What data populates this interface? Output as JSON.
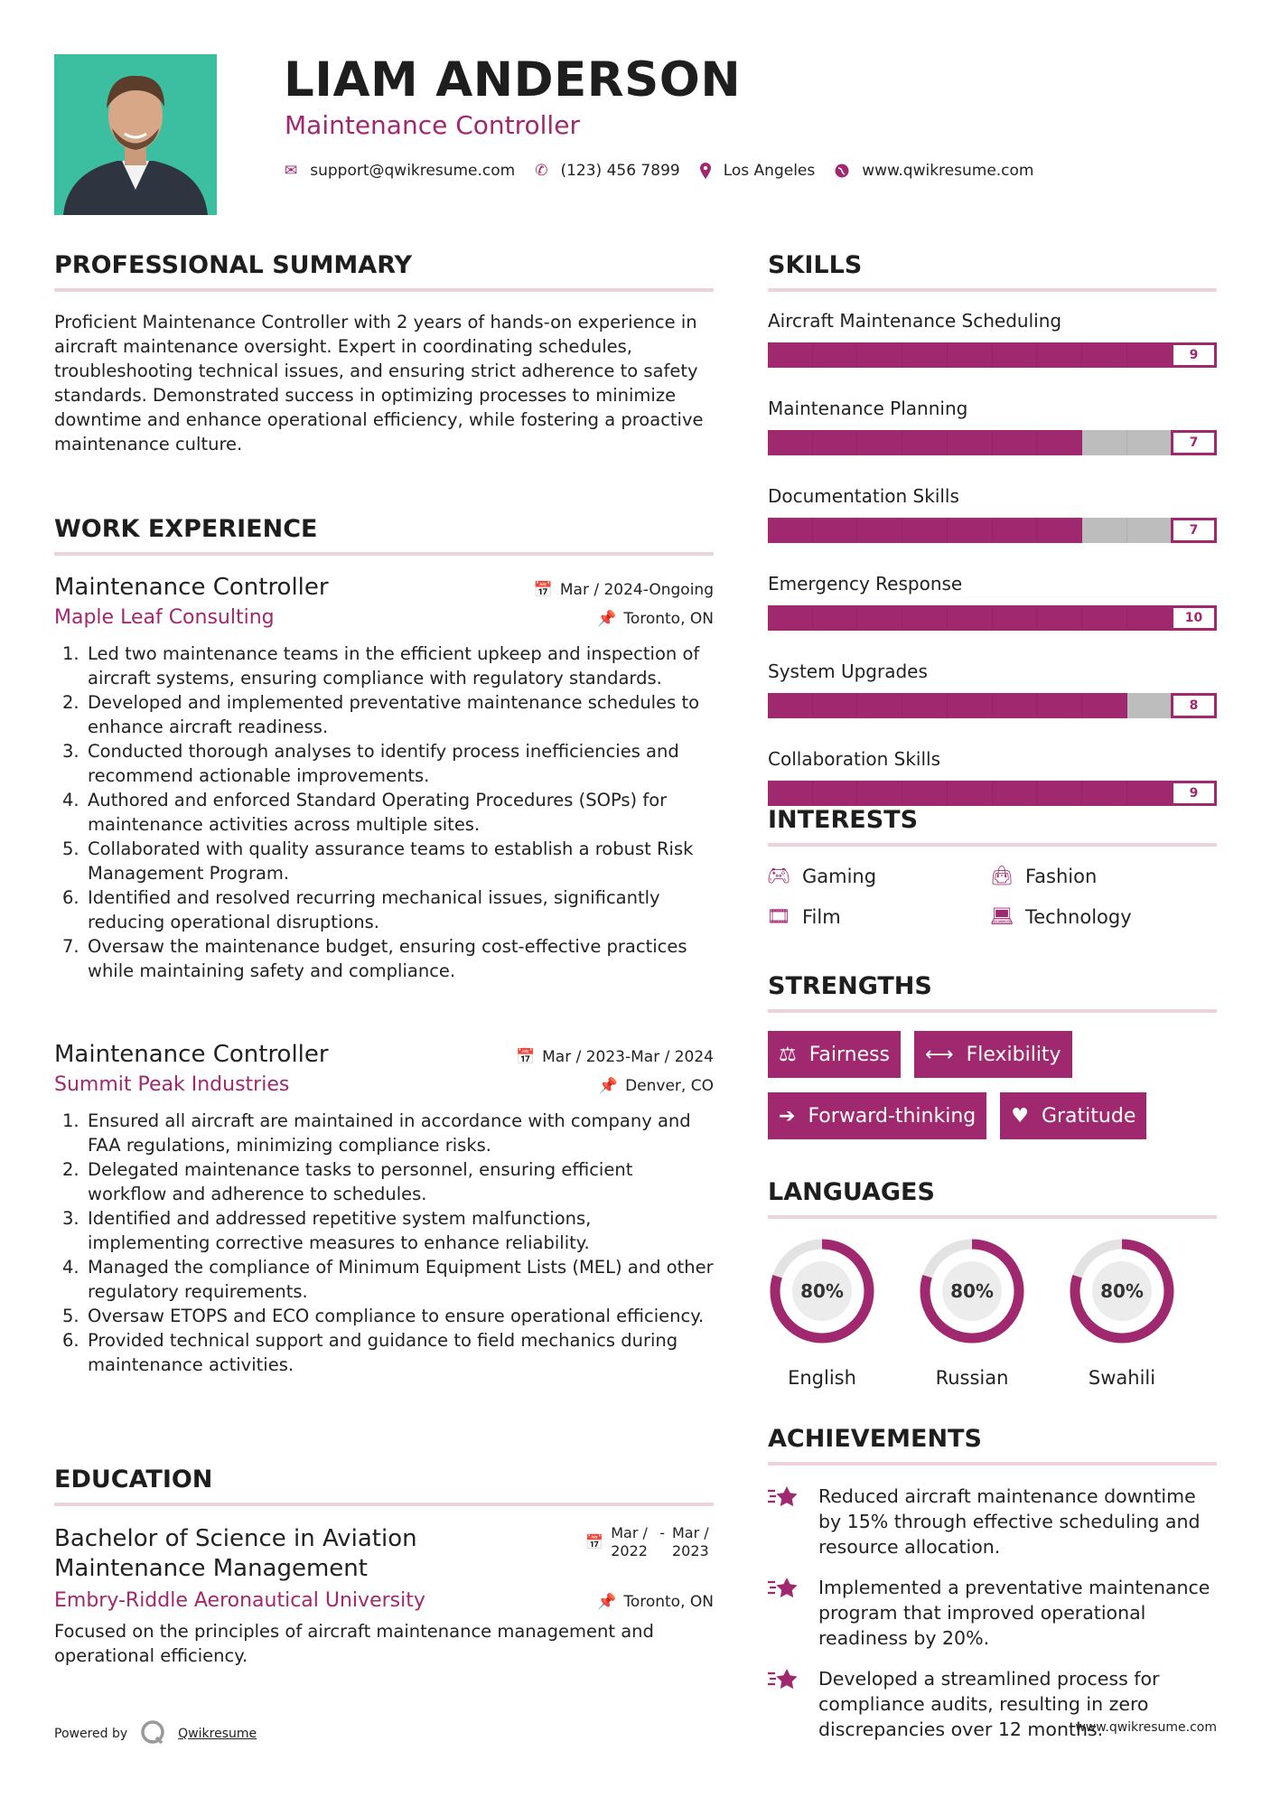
{
  "header": {
    "name": "LIAM ANDERSON",
    "title": "Maintenance Controller",
    "contacts": [
      {
        "icon": "envelope-icon",
        "text": "support@qwikresume.com"
      },
      {
        "icon": "phone-icon",
        "text": "(123) 456 7899"
      },
      {
        "icon": "map-marker-icon",
        "text": "Los Angeles"
      },
      {
        "icon": "globe-icon",
        "text": "www.qwikresume.com"
      }
    ]
  },
  "summary": {
    "heading": "PROFESSIONAL SUMMARY",
    "text": "Proficient Maintenance Controller with 2 years of hands-on experience in aircraft maintenance oversight. Expert in coordinating schedules, troubleshooting technical issues, and ensuring strict adherence to safety standards. Demonstrated success in optimizing processes to minimize downtime and enhance operational efficiency, while fostering a proactive maintenance culture."
  },
  "experience": {
    "heading": "WORK EXPERIENCE",
    "jobs": [
      {
        "title": "Maintenance Controller",
        "company": "Maple Leaf Consulting",
        "date": "Mar / 2024-Ongoing",
        "location": "Toronto, ON",
        "items": [
          "Led two maintenance teams in the efficient upkeep and inspection of aircraft systems, ensuring compliance with regulatory standards.",
          "Developed and implemented preventative maintenance schedules to enhance aircraft readiness.",
          "Conducted thorough analyses to identify process inefficiencies and recommend actionable improvements.",
          "Authored and enforced Standard Operating Procedures (SOPs) for maintenance activities across multiple sites.",
          "Collaborated with quality assurance teams to establish a robust Risk Management Program.",
          "Identified and resolved recurring mechanical issues, significantly reducing operational disruptions.",
          "Oversaw the maintenance budget, ensuring cost-effective practices while maintaining safety and compliance."
        ]
      },
      {
        "title": "Maintenance Controller",
        "company": "Summit Peak Industries",
        "date": "Mar / 2023-Mar / 2024",
        "location": "Denver, CO",
        "items": [
          "Ensured all aircraft are maintained in accordance with company and FAA regulations, minimizing compliance risks.",
          "Delegated maintenance tasks to personnel, ensuring efficient workflow and adherence to schedules.",
          "Identified and addressed repetitive system malfunctions, implementing corrective measures to enhance reliability.",
          "Managed the compliance of Minimum Equipment Lists (MEL) and other regulatory requirements.",
          "Oversaw ETOPS and ECO compliance to ensure operational efficiency.",
          "Provided technical support and guidance to field mechanics during maintenance activities."
        ]
      }
    ]
  },
  "education": {
    "heading": "EDUCATION",
    "degree": "Bachelor of Science in Aviation Maintenance Management",
    "school": "Embry-Riddle Aeronautical University",
    "date_start": "Mar / 2022",
    "date_sep": "-",
    "date_end": "Mar / 2023",
    "location": "Toronto, ON",
    "text": "Focused on the principles of aircraft maintenance management and operational efficiency."
  },
  "skills": {
    "heading": "SKILLS",
    "max": 10,
    "items": [
      {
        "label": "Aircraft Maintenance Scheduling",
        "value": 9
      },
      {
        "label": "Maintenance Planning",
        "value": 7
      },
      {
        "label": "Documentation Skills",
        "value": 7
      },
      {
        "label": "Emergency Response",
        "value": 10
      },
      {
        "label": "System Upgrades",
        "value": 8
      },
      {
        "label": "Collaboration Skills",
        "value": 9
      }
    ]
  },
  "interests": {
    "heading": "INTERESTS",
    "items": [
      {
        "icon": "gamepad-icon",
        "label": "Gaming"
      },
      {
        "icon": "shopping-bag-icon",
        "label": "Fashion"
      },
      {
        "icon": "film-icon",
        "label": "Film"
      },
      {
        "icon": "laptop-icon",
        "label": "Technology"
      }
    ]
  },
  "strengths": {
    "heading": "STRENGTHS",
    "items": [
      {
        "icon": "balance-scale-icon",
        "label": "Fairness"
      },
      {
        "icon": "arrows-horizontal-icon",
        "label": "Flexibility"
      },
      {
        "icon": "arrow-right-icon",
        "label": "Forward-thinking"
      },
      {
        "icon": "heart-icon",
        "label": "Gratitude"
      }
    ]
  },
  "languages": {
    "heading": "LANGUAGES",
    "items": [
      {
        "label": "English",
        "value": 80,
        "text": "80%"
      },
      {
        "label": "Russian",
        "value": 80,
        "text": "80%"
      },
      {
        "label": "Swahili",
        "value": 80,
        "text": "80%"
      }
    ]
  },
  "achievements": {
    "heading": "ACHIEVEMENTS",
    "items": [
      "Reduced aircraft maintenance downtime by 15% through effective scheduling and resource allocation.",
      "Implemented a preventative maintenance program that improved operational readiness by 20%.",
      "Developed a streamlined process for compliance audits, resulting in zero discrepancies over 12 months."
    ]
  },
  "footer": {
    "powered": "Powered by",
    "brand": "Qwikresume",
    "site": "www.qwikresume.com"
  },
  "colors": {
    "accent": "#a0286f",
    "photo_bg": "#3bbfa0",
    "divider": "#ecd3dd"
  }
}
